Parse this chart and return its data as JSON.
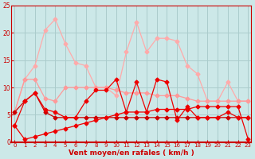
{
  "x": [
    0,
    1,
    2,
    3,
    4,
    5,
    6,
    7,
    8,
    9,
    10,
    11,
    12,
    13,
    14,
    15,
    16,
    17,
    18,
    19,
    20,
    21,
    22,
    23
  ],
  "line_light_pink": [
    5.5,
    11.5,
    11.5,
    8.0,
    7.5,
    10.0,
    10.0,
    10.0,
    10.0,
    10.0,
    9.5,
    9.0,
    9.0,
    9.0,
    8.5,
    8.5,
    8.5,
    8.0,
    7.5,
    7.5,
    7.5,
    7.5,
    7.5,
    7.5
  ],
  "line_pink": [
    5.5,
    11.5,
    14.0,
    20.5,
    22.5,
    18.0,
    14.5,
    14.0,
    10.0,
    10.0,
    8.5,
    16.5,
    22.0,
    16.5,
    19.0,
    19.0,
    18.5,
    14.0,
    12.5,
    7.5,
    7.5,
    11.0,
    7.5,
    7.5
  ],
  "line_dark_red1": [
    3.0,
    7.5,
    9.0,
    6.0,
    5.5,
    4.5,
    4.5,
    7.5,
    9.5,
    9.5,
    11.5,
    5.5,
    11.0,
    5.5,
    11.5,
    11.0,
    4.0,
    6.5,
    4.5,
    4.5,
    4.5,
    5.5,
    4.5,
    4.5
  ],
  "line_dark_red2": [
    5.5,
    7.5,
    9.0,
    5.5,
    4.5,
    4.5,
    4.5,
    4.5,
    4.5,
    4.5,
    4.5,
    4.5,
    4.5,
    4.5,
    4.5,
    4.5,
    4.5,
    4.5,
    4.5,
    4.5,
    4.5,
    4.5,
    4.5,
    4.5
  ],
  "line_ramp": [
    3.0,
    0.5,
    1.0,
    1.5,
    2.0,
    2.5,
    3.0,
    3.5,
    4.0,
    4.5,
    5.0,
    5.5,
    5.5,
    5.5,
    6.0,
    6.0,
    6.0,
    6.0,
    6.5,
    6.5,
    6.5,
    6.5,
    6.5,
    0.5
  ],
  "bg_color": "#cce8e8",
  "grid_color": "#aacccc",
  "xlabel": "Vent moyen/en rafales ( km/h )",
  "ylim": [
    0,
    25
  ],
  "yticks": [
    0,
    5,
    10,
    15,
    20,
    25
  ],
  "xticks": [
    0,
    1,
    2,
    3,
    4,
    5,
    6,
    7,
    8,
    9,
    10,
    11,
    12,
    13,
    14,
    15,
    16,
    17,
    18,
    19,
    20,
    21,
    22,
    23
  ],
  "tick_color": "#cc0000",
  "spine_color": "#cc0000",
  "light_pink": "#ffaaaa",
  "pink": "#ff9999",
  "dark_red": "#cc0000",
  "bright_red": "#ee0000"
}
